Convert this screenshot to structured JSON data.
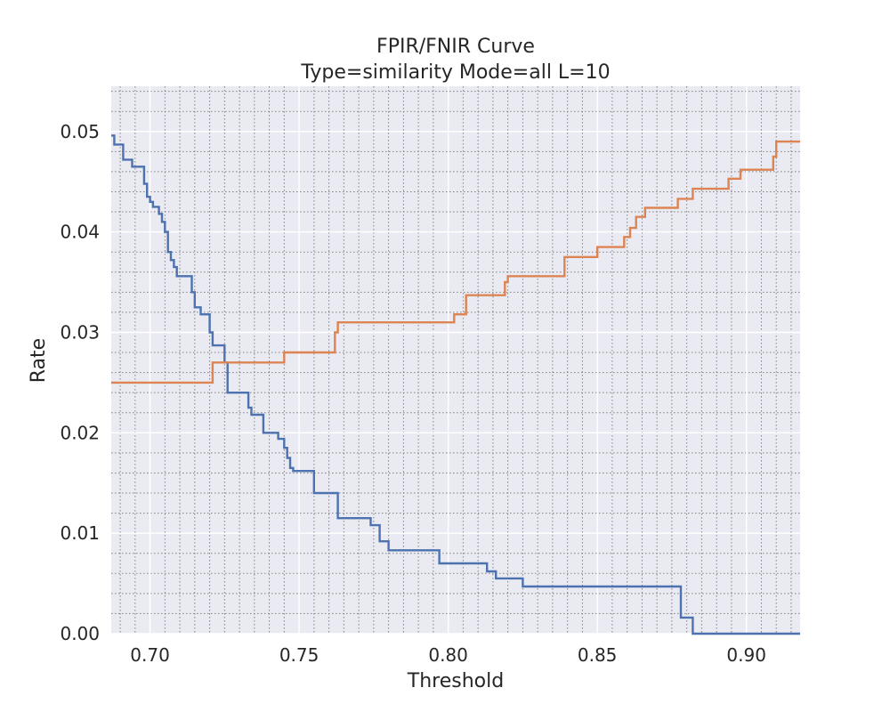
{
  "chart_data": {
    "type": "line",
    "title": "FPIR/FNIR Curve",
    "subtitle": "Type=similarity Mode=all L=10",
    "xlabel": "Threshold",
    "ylabel": "Rate",
    "xlim": [
      0.687,
      0.918
    ],
    "ylim": [
      0.0,
      0.0545
    ],
    "xticks": [
      0.7,
      0.75,
      0.8,
      0.85,
      0.9
    ],
    "xtick_labels": [
      "0.70",
      "0.75",
      "0.80",
      "0.85",
      "0.90"
    ],
    "yticks": [
      0.0,
      0.01,
      0.02,
      0.03,
      0.04,
      0.05
    ],
    "ytick_labels": [
      "0.00",
      "0.01",
      "0.02",
      "0.03",
      "0.04",
      "0.05"
    ],
    "grid": true,
    "minor_grid": true,
    "legend": false,
    "colors": {
      "background": "#eaeaf2",
      "major_grid": "#ffffff",
      "minor_grid": "#808080",
      "series_blue": "#4c72b0",
      "series_orange": "#dd8452"
    },
    "series": [
      {
        "color": "#4c72b0",
        "step": true,
        "x": [
          0.687,
          0.688,
          0.691,
          0.694,
          0.698,
          0.699,
          0.7,
          0.701,
          0.703,
          0.704,
          0.705,
          0.706,
          0.707,
          0.708,
          0.709,
          0.714,
          0.715,
          0.717,
          0.72,
          0.721,
          0.725,
          0.726,
          0.728,
          0.733,
          0.734,
          0.735,
          0.738,
          0.743,
          0.745,
          0.746,
          0.747,
          0.748,
          0.75,
          0.755,
          0.756,
          0.763,
          0.764,
          0.774,
          0.777,
          0.78,
          0.797,
          0.813,
          0.816,
          0.819,
          0.825,
          0.878,
          0.882,
          0.918
        ],
        "y": [
          0.0496,
          0.0487,
          0.0472,
          0.0465,
          0.0448,
          0.0435,
          0.043,
          0.0425,
          0.0418,
          0.041,
          0.04,
          0.038,
          0.0372,
          0.0365,
          0.0356,
          0.034,
          0.0325,
          0.0318,
          0.03,
          0.0287,
          0.027,
          0.024,
          0.024,
          0.0225,
          0.0218,
          0.0218,
          0.02,
          0.0194,
          0.0185,
          0.0175,
          0.0165,
          0.0162,
          0.0162,
          0.014,
          0.014,
          0.0115,
          0.0115,
          0.0108,
          0.0092,
          0.0083,
          0.007,
          0.0062,
          0.0055,
          0.0055,
          0.0047,
          0.0016,
          0.0,
          0.0
        ]
      },
      {
        "color": "#dd8452",
        "step": true,
        "x": [
          0.687,
          0.721,
          0.745,
          0.762,
          0.763,
          0.802,
          0.803,
          0.806,
          0.819,
          0.82,
          0.839,
          0.85,
          0.859,
          0.86,
          0.861,
          0.862,
          0.863,
          0.864,
          0.866,
          0.877,
          0.882,
          0.894,
          0.898,
          0.909,
          0.91,
          0.918
        ],
        "y": [
          0.025,
          0.027,
          0.028,
          0.03,
          0.031,
          0.0318,
          0.0318,
          0.0337,
          0.035,
          0.0356,
          0.0375,
          0.0385,
          0.0395,
          0.0395,
          0.0404,
          0.0404,
          0.0415,
          0.0415,
          0.0424,
          0.0433,
          0.0443,
          0.0453,
          0.0462,
          0.0475,
          0.049,
          0.049
        ]
      }
    ]
  }
}
